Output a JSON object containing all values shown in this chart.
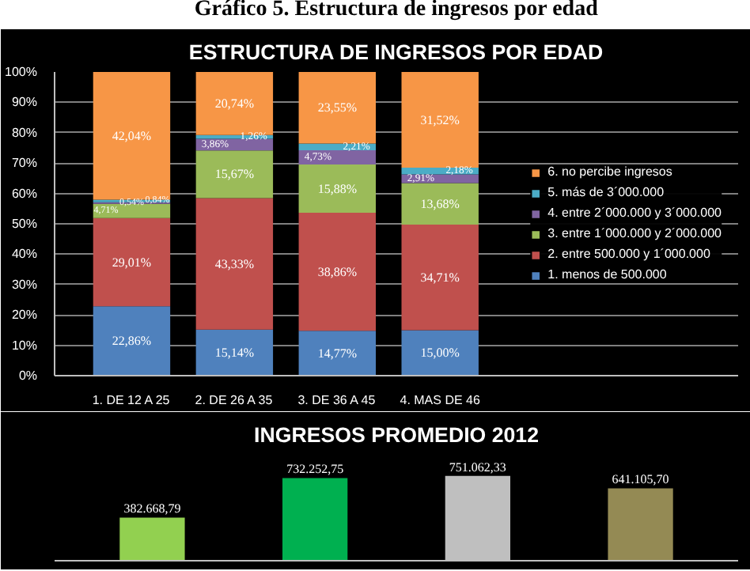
{
  "chart_data": [
    {
      "type": "bar",
      "title": "ESTRUCTURA DE INGRESOS POR EDAD",
      "annotations": [
        "Gráfico 5. Estructura de ingresos por edad"
      ],
      "categories": [
        "1. DE 12 A 25",
        "2. DE 26 A 35",
        "3. DE 36 A 45",
        "4. MAS DE 46"
      ],
      "stacked": true,
      "ylim": [
        0,
        100
      ],
      "yticks": [
        {
          "value": 0,
          "label": "0%"
        },
        {
          "value": 10,
          "label": "10%"
        },
        {
          "value": 20,
          "label": "20%"
        },
        {
          "value": 30,
          "label": "30%"
        },
        {
          "value": 40,
          "label": "40%"
        },
        {
          "value": 50,
          "label": "50%"
        },
        {
          "value": 60,
          "label": "60%"
        },
        {
          "value": 70,
          "label": "70%"
        },
        {
          "value": 80,
          "label": "80%"
        },
        {
          "value": 90,
          "label": "90%"
        },
        {
          "value": 100,
          "label": "100%"
        }
      ],
      "grid": "y",
      "legend": "right",
      "series": [
        {
          "name": "1. menos de 500.000",
          "color": "#4f81bd",
          "values": [
            22.86,
            15.14,
            14.77,
            15.0
          ],
          "value_labels": [
            "22,86%",
            "15,14%",
            "14,77%",
            "15,00%"
          ]
        },
        {
          "name": "2. entre 500.000 y 1´000.000",
          "color": "#c0504d",
          "values": [
            29.01,
            43.33,
            38.86,
            34.71
          ],
          "value_labels": [
            "29,01%",
            "43,33%",
            "38,86%",
            "34,71%"
          ]
        },
        {
          "name": "3. entre 1´000.000 y 2´000.000",
          "color": "#9bbb59",
          "values": [
            4.71,
            15.67,
            15.88,
            13.68
          ],
          "value_labels": [
            "4,71%",
            "15,67%",
            "15,88%",
            "13,68%"
          ]
        },
        {
          "name": "4. entre 2´000.000 y 3´000.000",
          "color": "#8064a2",
          "values": [
            0.54,
            3.86,
            4.73,
            2.91
          ],
          "value_labels": [
            "0,54%",
            "3,86%",
            "4,73%",
            "2,91%"
          ]
        },
        {
          "name": "5. más de 3´000.000",
          "color": "#4bacc6",
          "values": [
            0.84,
            1.26,
            2.21,
            2.18
          ],
          "value_labels": [
            "0,84%",
            "1,26%",
            "2,21%",
            "2,18%"
          ]
        },
        {
          "name": "6. no percibe ingresos",
          "color": "#f79646",
          "values": [
            42.04,
            20.74,
            23.55,
            31.52
          ],
          "value_labels": [
            "42,04%",
            "20,74%",
            "23,55%",
            "31,52%"
          ]
        }
      ]
    },
    {
      "type": "bar",
      "title": "INGRESOS PROMEDIO 2012",
      "categories": [
        null,
        null,
        null,
        null
      ],
      "values": [
        382668.79,
        732252.75,
        751062.33,
        641105.7
      ],
      "colors": [
        "#92d050",
        "#00b050",
        "#bfbfbf",
        "#948a54"
      ],
      "value_labels": [
        "382.668,79",
        "732.252,75",
        "751.062,33",
        "641.105,70"
      ]
    }
  ]
}
